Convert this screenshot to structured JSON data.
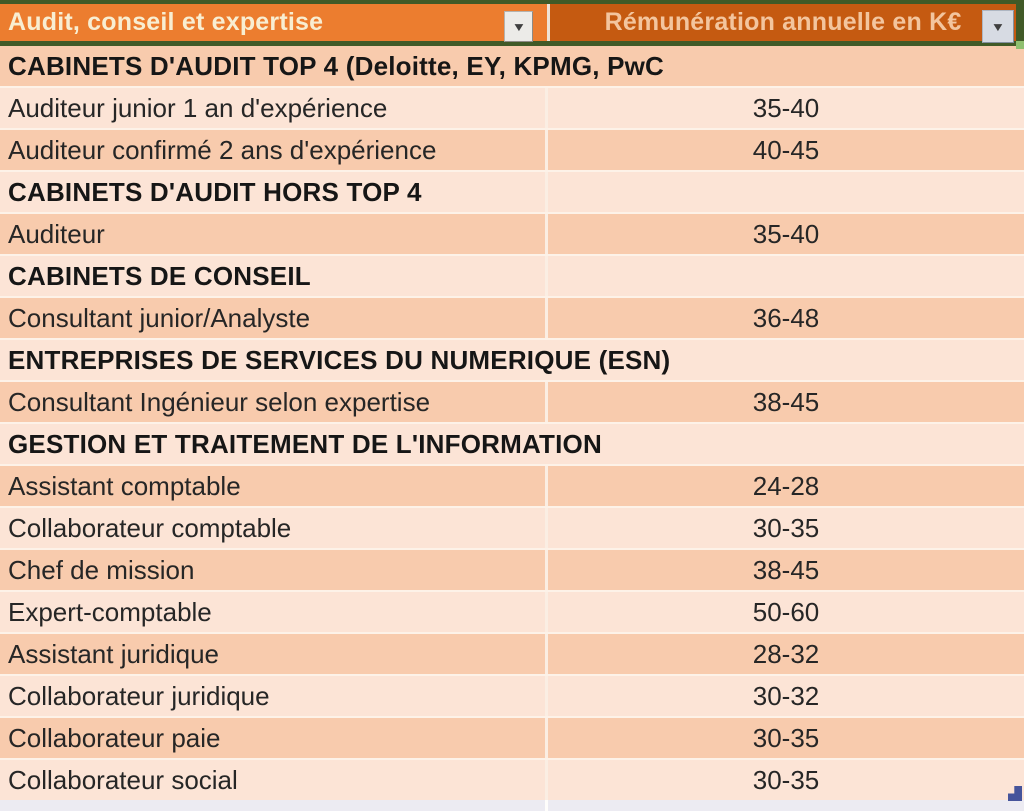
{
  "header": {
    "columns": [
      {
        "label": "Audit, conseil et expertise"
      },
      {
        "label": "Rémunération annuelle en K€"
      }
    ],
    "filter_icon_glyph": "▼"
  },
  "table": {
    "rows": [
      {
        "label": "CABINETS D'AUDIT TOP 4 (Deloitte, EY, KPMG, PwC",
        "value": "",
        "section": true
      },
      {
        "label": "Auditeur junior 1 an d'expérience",
        "value": "35-40",
        "section": false
      },
      {
        "label": "Auditeur confirmé 2 ans d'expérience",
        "value": "40-45",
        "section": false
      },
      {
        "label": "CABINETS D'AUDIT HORS TOP 4",
        "value": "",
        "section": true
      },
      {
        "label": "Auditeur",
        "value": "35-40",
        "section": false
      },
      {
        "label": "CABINETS DE CONSEIL",
        "value": "",
        "section": true
      },
      {
        "label": "Consultant junior/Analyste",
        "value": "36-48",
        "section": false
      },
      {
        "label": "ENTREPRISES DE SERVICES DU NUMERIQUE (ESN)",
        "value": "",
        "section": true
      },
      {
        "label": "Consultant Ingénieur selon expertise",
        "value": "38-45",
        "section": false
      },
      {
        "label": "GESTION ET TRAITEMENT DE L'INFORMATION",
        "value": "",
        "section": true
      },
      {
        "label": "Assistant comptable",
        "value": "24-28",
        "section": false
      },
      {
        "label": "Collaborateur comptable",
        "value": "30-35",
        "section": false
      },
      {
        "label": "Chef de mission",
        "value": "38-45",
        "section": false
      },
      {
        "label": "Expert-comptable",
        "value": "50-60",
        "section": false
      },
      {
        "label": "Assistant juridique",
        "value": "28-32",
        "section": false
      },
      {
        "label": "Collaborateur juridique",
        "value": "30-32",
        "section": false
      },
      {
        "label": "Collaborateur paie",
        "value": "30-35",
        "section": false
      },
      {
        "label": "Collaborateur social",
        "value": "30-35",
        "section": false
      }
    ]
  },
  "colors": {
    "header_left_bg": "#EC7D2F",
    "header_right_bg": "#C55A11",
    "band_dark": "#F8CBAD",
    "band_light": "#FCE4D6",
    "border_green": "#415A27",
    "corner_green": "#8FBF6F",
    "marker_blue": "#46549B",
    "text_dark": "#262626"
  }
}
